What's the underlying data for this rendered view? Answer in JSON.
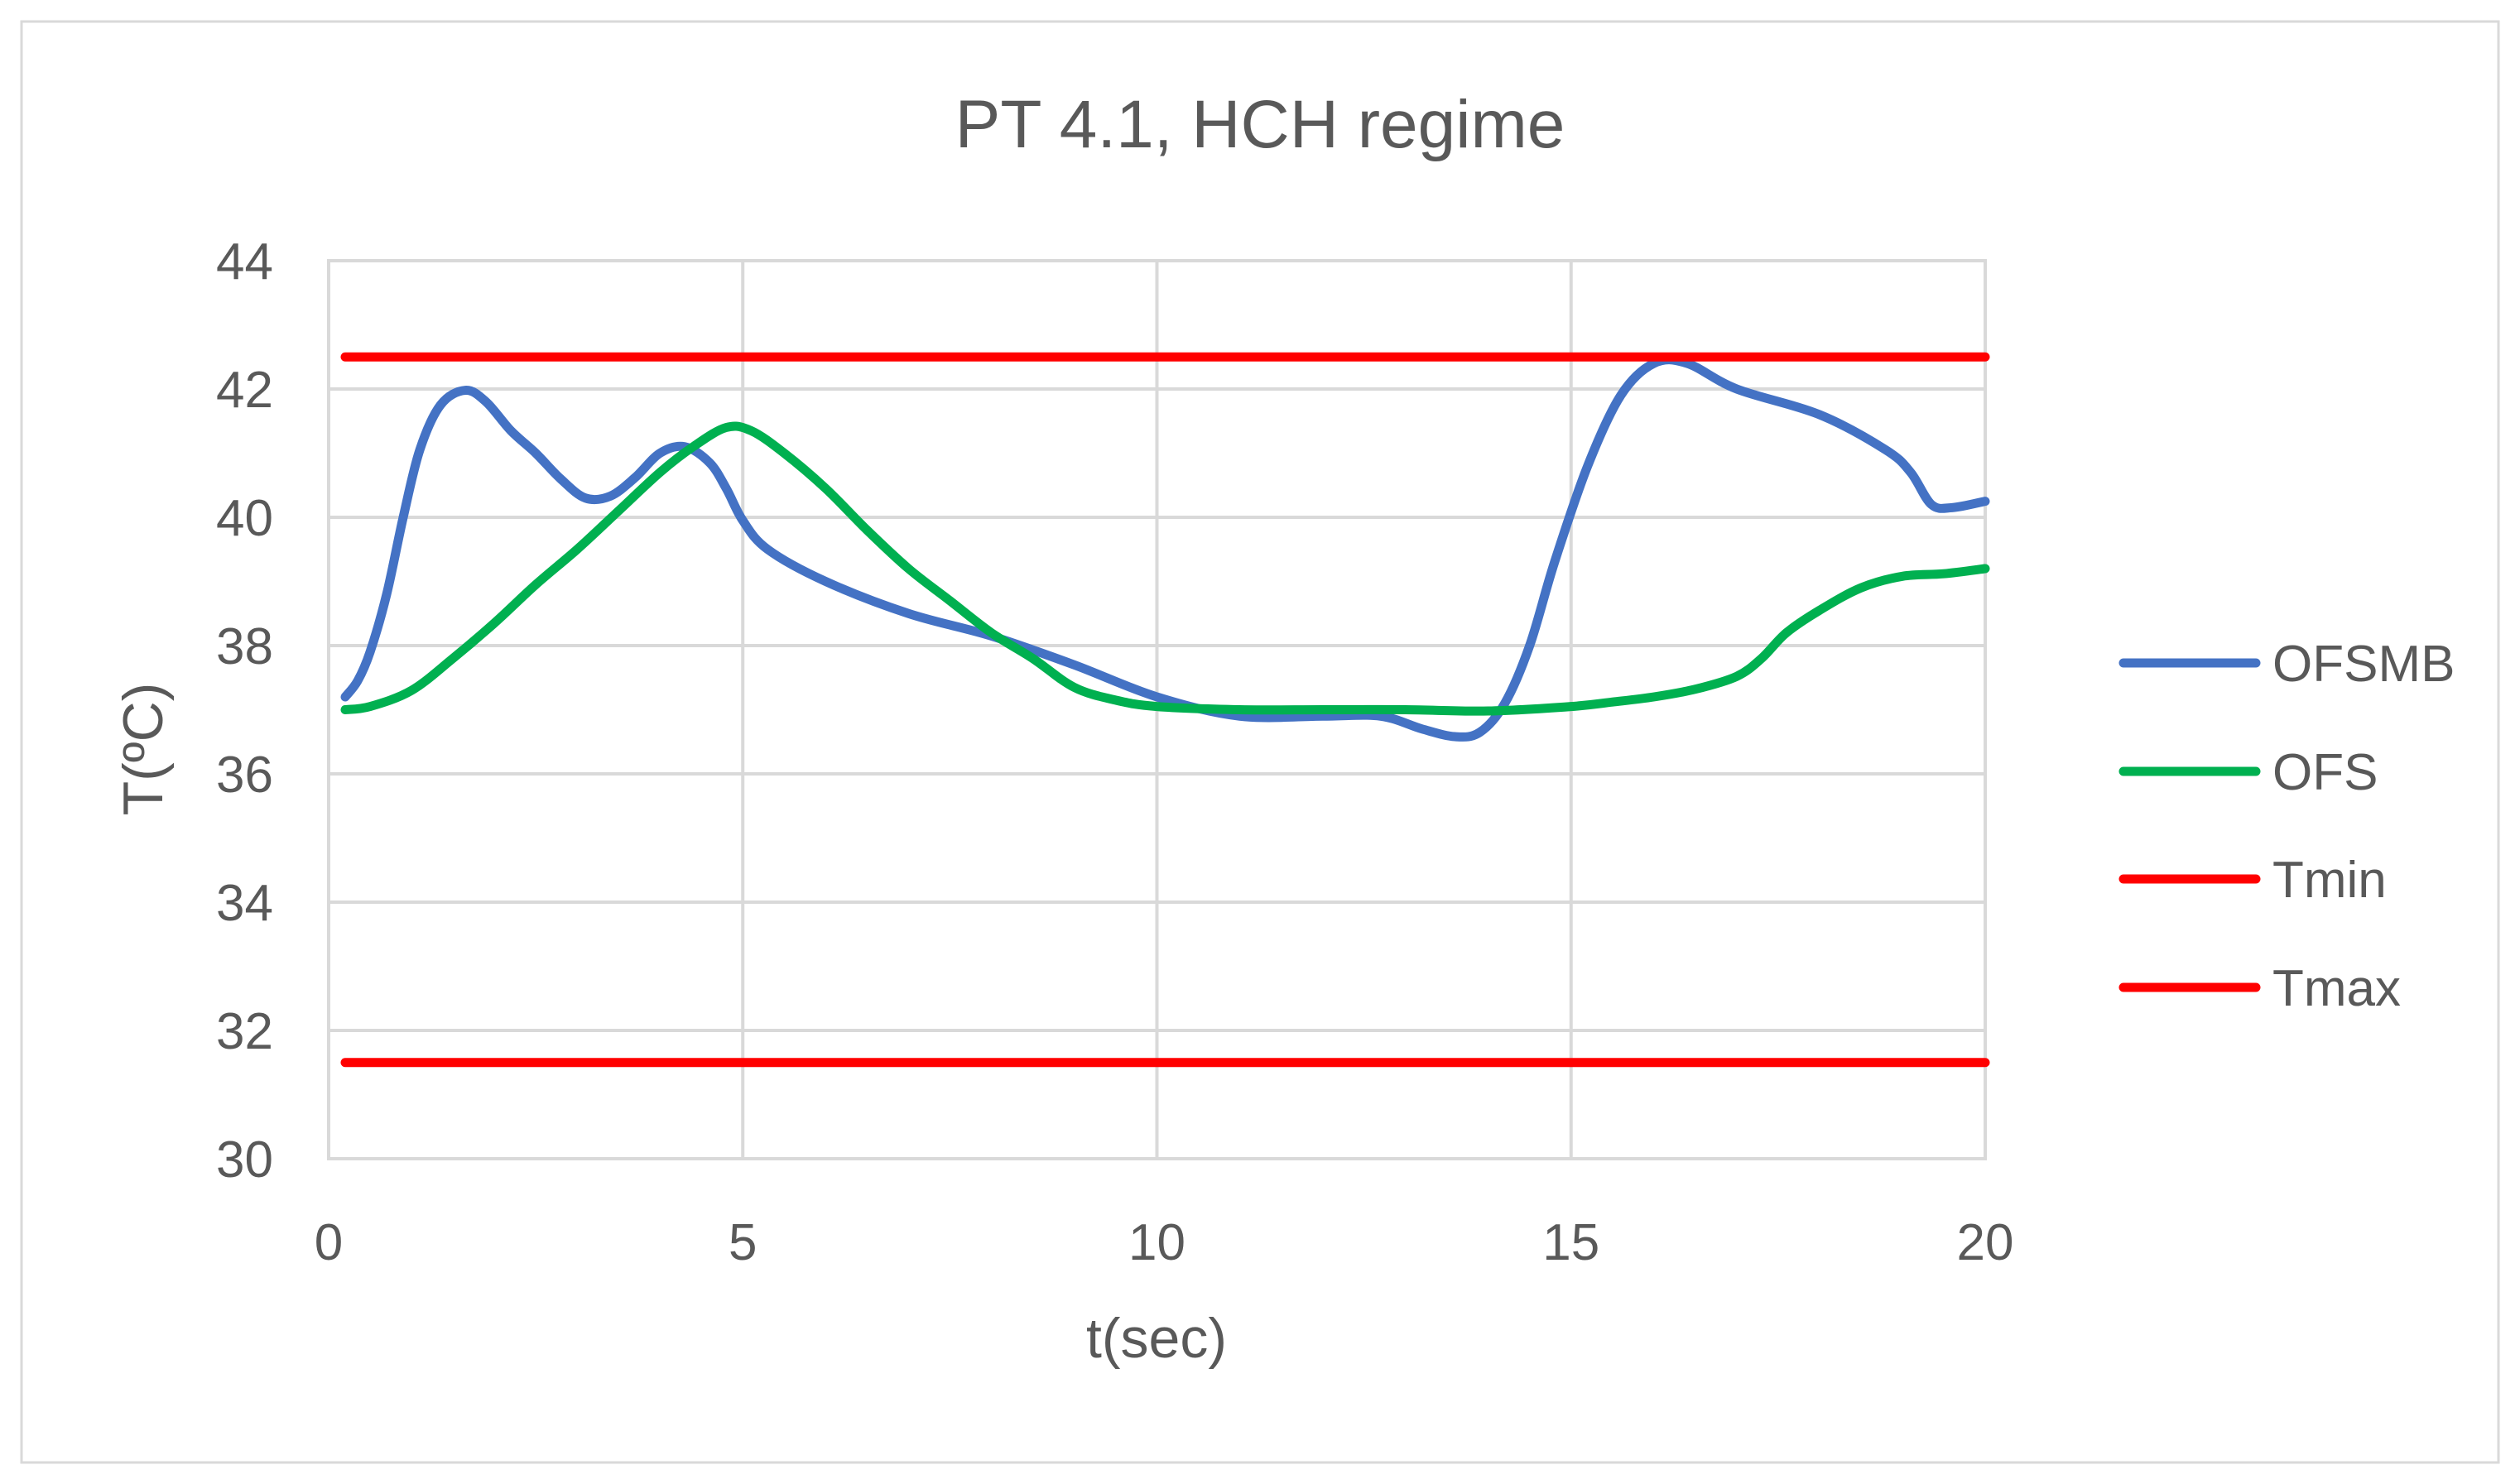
{
  "chart_data": {
    "type": "line",
    "title": "PT 4.1, HCH regime",
    "xlabel": "t(sec)",
    "ylabel": "T(ºC)",
    "xlim": [
      0,
      20
    ],
    "ylim": [
      30,
      44
    ],
    "x_ticks": [
      "0",
      "5",
      "10",
      "15",
      "20"
    ],
    "y_ticks": [
      "30",
      "32",
      "34",
      "36",
      "38",
      "40",
      "42",
      "44"
    ],
    "grid": true,
    "legend_position": "right",
    "series": [
      {
        "name": "OFSMB",
        "color": "#4472C4",
        "points": [
          [
            0.2,
            37.2
          ],
          [
            0.35,
            37.45
          ],
          [
            0.5,
            37.9
          ],
          [
            0.7,
            38.8
          ],
          [
            0.9,
            40.0
          ],
          [
            1.1,
            41.05
          ],
          [
            1.35,
            41.75
          ],
          [
            1.65,
            41.98
          ],
          [
            1.9,
            41.8
          ],
          [
            2.2,
            41.35
          ],
          [
            2.5,
            41.0
          ],
          [
            2.8,
            40.6
          ],
          [
            3.1,
            40.3
          ],
          [
            3.4,
            40.33
          ],
          [
            3.7,
            40.62
          ],
          [
            4.0,
            41.0
          ],
          [
            4.3,
            41.1
          ],
          [
            4.6,
            40.85
          ],
          [
            4.8,
            40.45
          ],
          [
            5.0,
            39.95
          ],
          [
            5.3,
            39.5
          ],
          [
            6.0,
            39.0
          ],
          [
            7.0,
            38.5
          ],
          [
            8.0,
            38.15
          ],
          [
            9.0,
            37.7
          ],
          [
            10.0,
            37.2
          ],
          [
            11.0,
            36.9
          ],
          [
            12.0,
            36.9
          ],
          [
            12.7,
            36.9
          ],
          [
            13.2,
            36.7
          ],
          [
            13.6,
            36.58
          ],
          [
            13.9,
            36.65
          ],
          [
            14.2,
            37.1
          ],
          [
            14.5,
            38.0
          ],
          [
            14.8,
            39.3
          ],
          [
            15.2,
            40.8
          ],
          [
            15.6,
            41.9
          ],
          [
            16.0,
            42.4
          ],
          [
            16.4,
            42.4
          ],
          [
            17.0,
            42.0
          ],
          [
            18.0,
            41.6
          ],
          [
            18.8,
            41.05
          ],
          [
            19.1,
            40.7
          ],
          [
            19.35,
            40.2
          ],
          [
            19.6,
            40.15
          ],
          [
            20.0,
            40.25
          ]
        ]
      },
      {
        "name": "OFS",
        "color": "#00B050",
        "points": [
          [
            0.2,
            37.0
          ],
          [
            0.5,
            37.05
          ],
          [
            1.0,
            37.3
          ],
          [
            1.5,
            37.8
          ],
          [
            2.0,
            38.35
          ],
          [
            2.5,
            38.95
          ],
          [
            3.0,
            39.5
          ],
          [
            3.5,
            40.1
          ],
          [
            4.0,
            40.7
          ],
          [
            4.4,
            41.1
          ],
          [
            4.8,
            41.4
          ],
          [
            5.1,
            41.35
          ],
          [
            5.5,
            41.0
          ],
          [
            6.0,
            40.45
          ],
          [
            6.5,
            39.8
          ],
          [
            7.0,
            39.2
          ],
          [
            7.5,
            38.7
          ],
          [
            8.0,
            38.2
          ],
          [
            8.5,
            37.8
          ],
          [
            9.0,
            37.35
          ],
          [
            9.5,
            37.15
          ],
          [
            10.0,
            37.05
          ],
          [
            11.0,
            37.0
          ],
          [
            12.0,
            37.0
          ],
          [
            13.0,
            37.0
          ],
          [
            14.0,
            36.98
          ],
          [
            15.0,
            37.05
          ],
          [
            15.5,
            37.12
          ],
          [
            16.0,
            37.2
          ],
          [
            16.5,
            37.32
          ],
          [
            17.0,
            37.52
          ],
          [
            17.3,
            37.8
          ],
          [
            17.6,
            38.2
          ],
          [
            18.0,
            38.55
          ],
          [
            18.5,
            38.9
          ],
          [
            19.0,
            39.08
          ],
          [
            19.5,
            39.12
          ],
          [
            20.0,
            39.2
          ]
        ]
      },
      {
        "name": "Tmin",
        "color": "#FF0000",
        "points": [
          [
            0.2,
            42.5
          ],
          [
            20.0,
            42.5
          ]
        ]
      },
      {
        "name": "Tmax",
        "color": "#FF0000",
        "points": [
          [
            0.2,
            31.5
          ],
          [
            20.0,
            31.5
          ]
        ]
      }
    ]
  }
}
